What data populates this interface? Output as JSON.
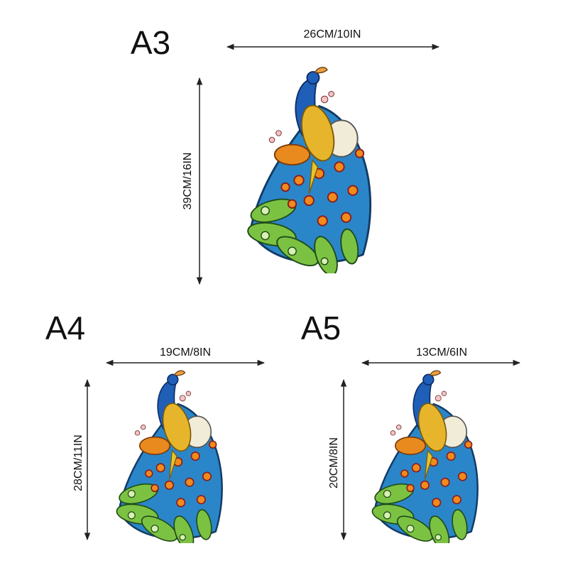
{
  "sizes": [
    {
      "label": "A3",
      "width": "26CM/10IN",
      "height": "39CM/16IN"
    },
    {
      "label": "A4",
      "width": "19CM/8IN",
      "height": "28CM/11IN"
    },
    {
      "label": "A5",
      "width": "13CM/6IN",
      "height": "20CM/8IN"
    }
  ]
}
